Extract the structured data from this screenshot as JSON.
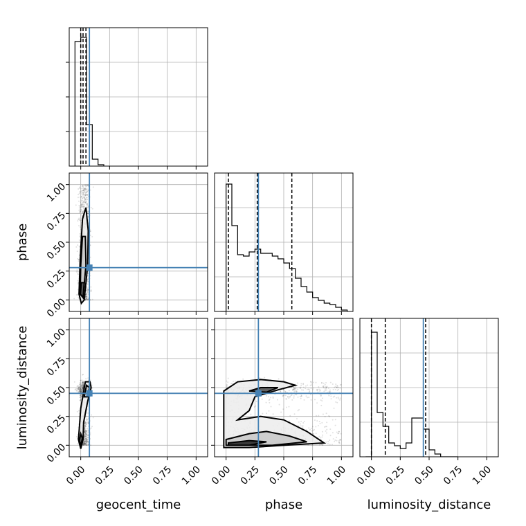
{
  "chart_data": {
    "type": "corner",
    "parameters": [
      "geocent_time",
      "phase",
      "luminosity_distance"
    ],
    "axis_range": [
      -0.1,
      1.1
    ],
    "ticks": [
      0.0,
      0.25,
      0.5,
      0.75,
      1.0
    ],
    "tick_labels": [
      "0.00",
      "0.25",
      "0.50",
      "0.75",
      "1.00"
    ],
    "xlabels": [
      "geocent_time",
      "phase",
      "luminosity_distance"
    ],
    "ylabels": [
      "",
      "phase",
      "luminosity_distance"
    ],
    "grid": true,
    "truth": {
      "geocent_time": 0.075,
      "phase": 0.28,
      "luminosity_distance": 0.45
    },
    "histograms": [
      {
        "parameter": "geocent_time",
        "bin_edges": [
          -0.05,
          0.0,
          0.05,
          0.1,
          0.15,
          0.2
        ],
        "counts": [
          0.9,
          0.93,
          0.3,
          0.05,
          0.01
        ],
        "quantiles": [
          0.0,
          0.02,
          0.045
        ]
      },
      {
        "parameter": "phase",
        "bin_edges": [
          -0.05,
          0.0,
          0.05,
          0.1,
          0.15,
          0.2,
          0.25,
          0.3,
          0.35,
          0.4,
          0.45,
          0.5,
          0.55,
          0.6,
          0.65,
          0.7,
          0.75,
          0.8,
          0.85,
          0.9,
          0.95,
          1.0,
          1.05
        ],
        "counts": [
          0.0,
          0.92,
          0.62,
          0.41,
          0.4,
          0.43,
          0.45,
          0.42,
          0.42,
          0.4,
          0.38,
          0.35,
          0.31,
          0.24,
          0.18,
          0.14,
          0.1,
          0.08,
          0.06,
          0.05,
          0.03,
          0.01
        ],
        "quantiles": [
          0.02,
          0.27,
          0.57
        ]
      },
      {
        "parameter": "luminosity_distance",
        "bin_edges": [
          -0.05,
          0.0,
          0.05,
          0.1,
          0.15,
          0.2,
          0.25,
          0.3,
          0.35,
          0.4,
          0.45,
          0.5,
          0.55,
          0.6,
          0.65,
          0.7,
          0.75
        ],
        "counts": [
          0.0,
          0.9,
          0.32,
          0.22,
          0.1,
          0.08,
          0.06,
          0.1,
          0.28,
          0.28,
          0.2,
          0.05,
          0.02,
          0.0,
          0.0,
          0.0
        ],
        "quantiles": [
          0.0,
          0.12,
          0.47
        ]
      }
    ],
    "contours": [
      {
        "x": "geocent_time",
        "y": "phase",
        "levels": [
          [
            [
              0.03,
              0.0
            ],
            [
              0.06,
              0.3
            ],
            [
              0.065,
              0.6
            ],
            [
              0.045,
              0.8
            ],
            [
              0.015,
              0.7
            ],
            [
              -0.005,
              0.35
            ],
            [
              -0.015,
              0.05
            ],
            [
              0.005,
              -0.03
            ]
          ],
          [
            [
              0.02,
              0.02
            ],
            [
              0.045,
              0.3
            ],
            [
              0.04,
              0.55
            ],
            [
              0.015,
              0.55
            ],
            [
              0.0,
              0.3
            ],
            [
              -0.005,
              0.05
            ]
          ],
          [
            [
              0.02,
              0.02
            ],
            [
              0.03,
              0.15
            ],
            [
              0.005,
              0.15
            ],
            [
              -0.002,
              0.05
            ]
          ]
        ]
      },
      {
        "x": "geocent_time",
        "y": "luminosity_distance",
        "levels": [
          [
            [
              0.0,
              0.32
            ],
            [
              0.04,
              0.55
            ],
            [
              0.08,
              0.55
            ],
            [
              0.09,
              0.5
            ],
            [
              0.06,
              0.38
            ],
            [
              0.025,
              0.2
            ],
            [
              0.02,
              0.05
            ],
            [
              0.0,
              -0.03
            ],
            [
              -0.02,
              0.05
            ],
            [
              -0.01,
              0.18
            ]
          ],
          [
            [
              0.03,
              0.42
            ],
            [
              0.05,
              0.52
            ],
            [
              0.075,
              0.5
            ],
            [
              0.06,
              0.42
            ]
          ],
          [
            [
              0.0,
              0.0
            ],
            [
              0.015,
              0.06
            ],
            [
              0.0,
              0.1
            ],
            [
              -0.012,
              0.04
            ]
          ]
        ]
      },
      {
        "x": "phase",
        "y": "luminosity_distance",
        "levels": [
          [
            [
              -0.02,
              0.47
            ],
            [
              0.1,
              0.55
            ],
            [
              0.3,
              0.57
            ],
            [
              0.5,
              0.55
            ],
            [
              0.6,
              0.52
            ],
            [
              0.45,
              0.48
            ],
            [
              0.25,
              0.42
            ],
            [
              0.2,
              0.3
            ],
            [
              0.1,
              0.22
            ],
            [
              0.3,
              0.25
            ],
            [
              0.5,
              0.22
            ],
            [
              0.7,
              0.12
            ],
            [
              0.85,
              0.02
            ],
            [
              0.5,
              0.0
            ],
            [
              0.2,
              -0.02
            ],
            [
              -0.02,
              -0.02
            ],
            [
              -0.02,
              0.2
            ]
          ],
          [
            [
              0.0,
              0.05
            ],
            [
              0.2,
              0.1
            ],
            [
              0.35,
              0.12
            ],
            [
              0.55,
              0.08
            ],
            [
              0.7,
              0.03
            ],
            [
              0.4,
              0.0
            ],
            [
              0.1,
              0.0
            ],
            [
              0.0,
              0.0
            ]
          ],
          [
            [
              0.2,
              0.47
            ],
            [
              0.3,
              0.5
            ],
            [
              0.45,
              0.5
            ],
            [
              0.35,
              0.46
            ]
          ],
          [
            [
              0.02,
              0.02
            ],
            [
              0.2,
              0.04
            ],
            [
              0.35,
              0.03
            ],
            [
              0.2,
              0.0
            ],
            [
              0.02,
              0.0
            ]
          ]
        ]
      }
    ],
    "colors": {
      "truth": "#4682b4",
      "hist": "#000000",
      "quantile": "#000000",
      "grid": "#b0b0b0",
      "samples": "#000000"
    }
  }
}
